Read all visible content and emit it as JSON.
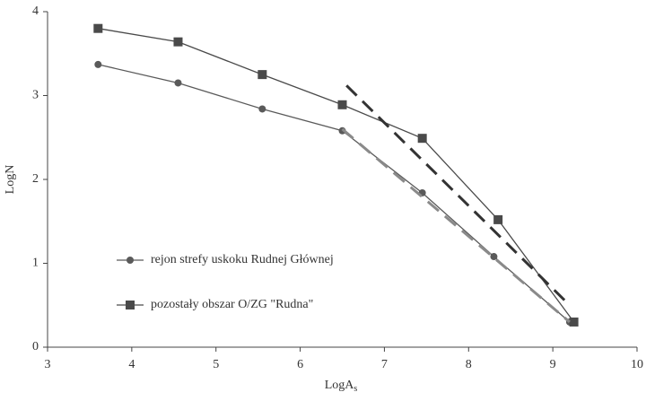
{
  "chart_data": {
    "type": "line",
    "x_label": "LogA",
    "x_label_sub": "s",
    "y_label": "LogN",
    "xlim": [
      3,
      10
    ],
    "xticks": [
      3,
      4,
      5,
      6,
      7,
      8,
      9,
      10
    ],
    "ylim": [
      0,
      4
    ],
    "yticks": [
      0,
      1,
      2,
      3,
      4
    ],
    "grid": false,
    "series": [
      {
        "name": "rejon strefy uskoku Rudnej Głównej",
        "color": "#5a5a5a",
        "marker": "circle",
        "x": [
          3.6,
          4.55,
          5.55,
          6.5,
          7.45,
          8.3,
          9.2
        ],
        "values": [
          3.37,
          3.15,
          2.84,
          2.58,
          1.84,
          1.08,
          0.3
        ]
      },
      {
        "name": "pozostały obszar O/ZG \"Rudna\"",
        "color": "#4a4a4a",
        "marker": "square",
        "x": [
          3.6,
          4.55,
          5.55,
          6.5,
          7.45,
          8.35,
          9.25
        ],
        "values": [
          3.8,
          3.64,
          3.25,
          2.89,
          2.49,
          1.52,
          0.3
        ]
      }
    ],
    "fit_lines": [
      {
        "color": "#8a8a8a",
        "x": [
          6.5,
          9.2
        ],
        "values": [
          2.6,
          0.3
        ]
      },
      {
        "color": "#333333",
        "x": [
          6.55,
          9.2
        ],
        "values": [
          3.12,
          0.5
        ]
      }
    ]
  }
}
